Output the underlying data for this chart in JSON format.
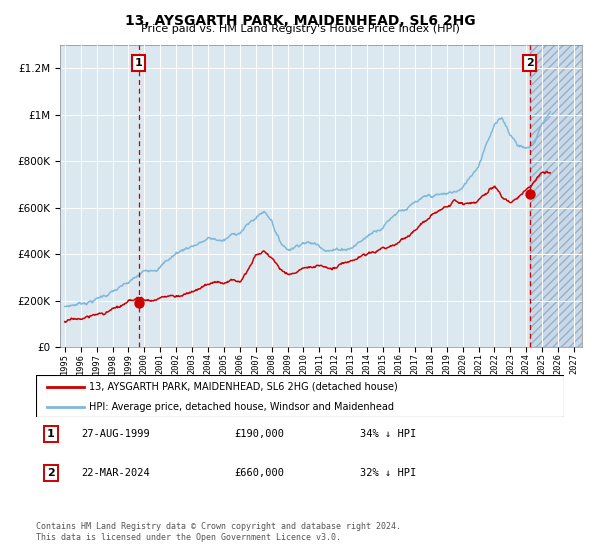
{
  "title": "13, AYSGARTH PARK, MAIDENHEAD, SL6 2HG",
  "subtitle": "Price paid vs. HM Land Registry's House Price Index (HPI)",
  "hpi_color": "#7fb8d8",
  "price_color": "#cc0000",
  "plot_bg_color": "#dce8f0",
  "ylim": [
    0,
    1300000
  ],
  "yticks": [
    0,
    200000,
    400000,
    600000,
    800000,
    1000000,
    1200000
  ],
  "xlim_start": 1994.7,
  "xlim_end": 2027.5,
  "sale1_x": 1999.65,
  "sale1_y": 190000,
  "sale1_label": "1",
  "sale1_date": "27-AUG-1999",
  "sale1_price": "£190,000",
  "sale1_pct": "34% ↓ HPI",
  "sale2_x": 2024.22,
  "sale2_y": 660000,
  "sale2_label": "2",
  "sale2_date": "22-MAR-2024",
  "sale2_price": "£660,000",
  "sale2_pct": "32% ↓ HPI",
  "legend_line1": "13, AYSGARTH PARK, MAIDENHEAD, SL6 2HG (detached house)",
  "legend_line2": "HPI: Average price, detached house, Windsor and Maidenhead",
  "footer1": "Contains HM Land Registry data © Crown copyright and database right 2024.",
  "footer2": "This data is licensed under the Open Government Licence v3.0.",
  "hatch_start": 2024.22,
  "hatch_end": 2027.5
}
